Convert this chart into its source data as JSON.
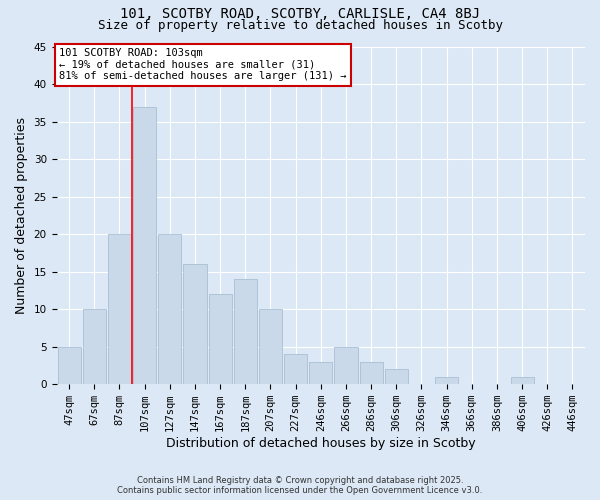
{
  "title1": "101, SCOTBY ROAD, SCOTBY, CARLISLE, CA4 8BJ",
  "title2": "Size of property relative to detached houses in Scotby",
  "xlabel": "Distribution of detached houses by size in Scotby",
  "ylabel": "Number of detached properties",
  "bar_color": "#c9d9ea",
  "bar_edge_color": "#aabfd4",
  "categories": [
    "47sqm",
    "67sqm",
    "87sqm",
    "107sqm",
    "127sqm",
    "147sqm",
    "167sqm",
    "187sqm",
    "207sqm",
    "227sqm",
    "246sqm",
    "266sqm",
    "286sqm",
    "306sqm",
    "326sqm",
    "346sqm",
    "366sqm",
    "386sqm",
    "406sqm",
    "426sqm",
    "446sqm"
  ],
  "values": [
    5,
    10,
    20,
    37,
    20,
    16,
    12,
    14,
    10,
    4,
    3,
    5,
    3,
    2,
    0,
    1,
    0,
    0,
    1,
    0,
    0
  ],
  "ylim": [
    0,
    45
  ],
  "yticks": [
    0,
    5,
    10,
    15,
    20,
    25,
    30,
    35,
    40,
    45
  ],
  "vline_x": 3.0,
  "annotation_line1": "101 SCOTBY ROAD: 103sqm",
  "annotation_line2": "← 19% of detached houses are smaller (31)",
  "annotation_line3": "81% of semi-detached houses are larger (131) →",
  "annotation_box_color": "#ffffff",
  "annotation_box_edge_color": "#cc0000",
  "background_color": "#dce8f5",
  "grid_color": "#ffffff",
  "footer_text": "Contains HM Land Registry data © Crown copyright and database right 2025.\nContains public sector information licensed under the Open Government Licence v3.0.",
  "title_fontsize": 10,
  "subtitle_fontsize": 9,
  "tick_fontsize": 7.5,
  "label_fontsize": 9
}
